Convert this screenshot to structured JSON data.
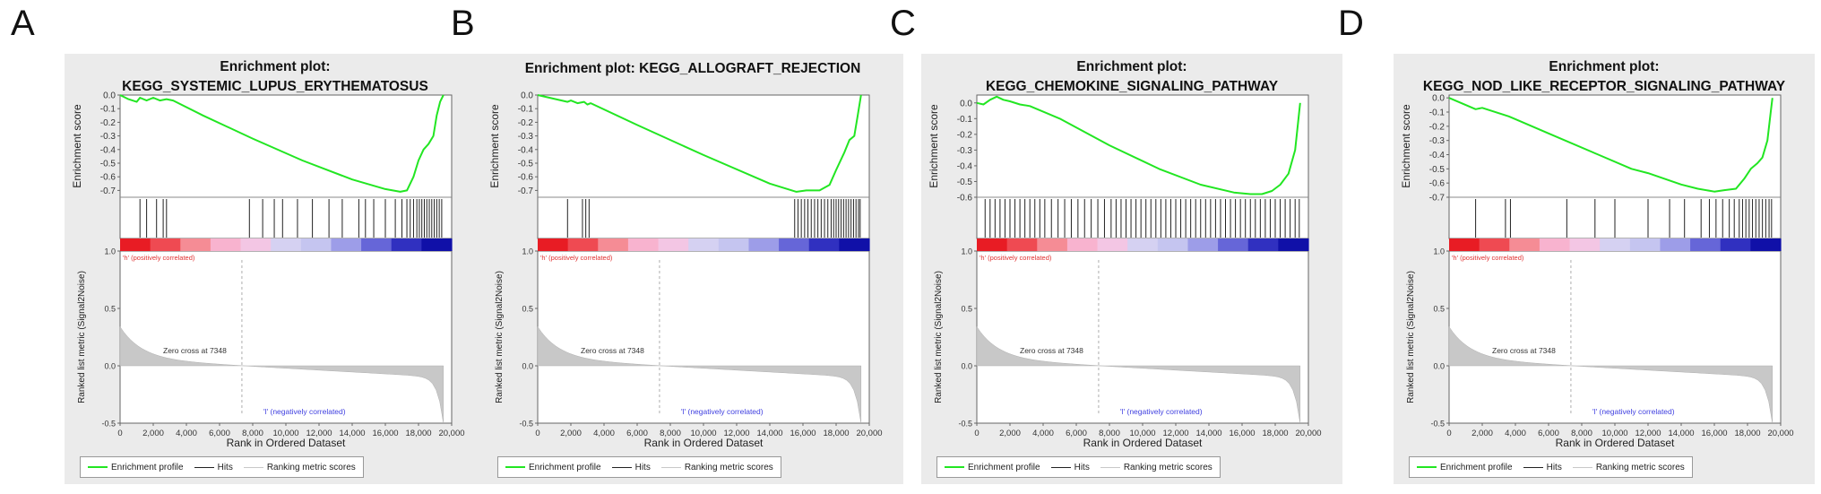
{
  "colors": {
    "profile": "#22e622",
    "hits": "#222222",
    "metric_fill": "#c8c8c8",
    "panel_bg": "#ebebeb",
    "pos_label": "#e03030",
    "neg_label": "#4040e0",
    "ramp": [
      "#e81c24",
      "#ef4a52",
      "#f58c95",
      "#f8b3cf",
      "#f3c6e4",
      "#d5d1f2",
      "#c5c5f0",
      "#9d9de8",
      "#6666d8",
      "#3030c0",
      "#1010a8"
    ]
  },
  "chart_data": [
    {
      "type": "line",
      "letter": "A",
      "title_line1": "Enrichment plot:",
      "title_line2": "KEGG_SYSTEMIC_LUPUS_ERYTHEMATOSUS",
      "ylabel": "Enrichment score",
      "ylabel2": "Ranked list metric (Signal2Noise)",
      "xlabel": "Rank in Ordered Dataset",
      "ylim": [
        -0.75,
        0.0
      ],
      "yticks": [
        "0.0",
        "-0.1",
        "-0.2",
        "-0.3",
        "-0.4",
        "-0.5",
        "-0.6",
        "-0.7"
      ],
      "xlim": [
        0,
        20000
      ],
      "xticks": [
        "0",
        "2,000",
        "4,000",
        "6,000",
        "8,000",
        "10,000",
        "12,000",
        "14,000",
        "16,000",
        "18,000",
        "20,000"
      ],
      "metric_ylim": [
        -0.5,
        1.0
      ],
      "metric_yticks": [
        "1.0",
        "0.5",
        "0.0",
        "-0.5"
      ],
      "pos_label": "'h' (positively correlated)",
      "neg_label": "'l' (negatively correlated)",
      "zero_cross_label": "Zero cross at 7348",
      "zero_cross": 7348,
      "profile": {
        "x": [
          0,
          500,
          1000,
          1200,
          1600,
          2000,
          2400,
          2800,
          3200,
          5000,
          8000,
          11000,
          14000,
          16000,
          16900,
          17300,
          17700,
          18000,
          18300,
          18600,
          18900,
          19100,
          19300,
          19500
        ],
        "y": [
          0.0,
          -0.03,
          -0.05,
          -0.02,
          -0.04,
          -0.02,
          -0.04,
          -0.03,
          -0.04,
          -0.15,
          -0.32,
          -0.48,
          -0.62,
          -0.69,
          -0.71,
          -0.7,
          -0.6,
          -0.48,
          -0.4,
          -0.36,
          -0.3,
          -0.15,
          -0.05,
          0.0
        ]
      },
      "hits": [
        1200,
        1600,
        2200,
        2600,
        2800,
        7800,
        8600,
        9300,
        9800,
        10700,
        11600,
        12600,
        13400,
        14400,
        14800,
        15300,
        16000,
        16600,
        17000,
        17300,
        17500,
        17700,
        17900,
        18050,
        18200,
        18350,
        18500,
        18650,
        18800,
        18950,
        19100,
        19250,
        19400
      ]
    },
    {
      "type": "line",
      "letter": "B",
      "title_line1": "Enrichment plot: KEGG_ALLOGRAFT_REJECTION",
      "title_line2": "",
      "ylabel": "Enrichment score",
      "ylabel2": "Ranked list metric (Signal2Noise)",
      "xlabel": "Rank in Ordered Dataset",
      "ylim": [
        -0.75,
        0.0
      ],
      "yticks": [
        "0.0",
        "-0.1",
        "-0.2",
        "-0.3",
        "-0.4",
        "-0.5",
        "-0.6",
        "-0.7"
      ],
      "xlim": [
        0,
        20000
      ],
      "xticks": [
        "0",
        "2,000",
        "4,000",
        "6,000",
        "8,000",
        "10,000",
        "12,000",
        "14,000",
        "16,000",
        "18,000",
        "20,000"
      ],
      "metric_ylim": [
        -0.5,
        1.0
      ],
      "metric_yticks": [
        "1.0",
        "0.5",
        "0.0",
        "-0.5"
      ],
      "pos_label": "'h' (positively correlated)",
      "neg_label": "'l' (negatively correlated)",
      "zero_cross_label": "Zero cross at 7348",
      "zero_cross": 7348,
      "profile": {
        "x": [
          0,
          1800,
          2000,
          2400,
          2800,
          3000,
          3200,
          6000,
          10000,
          14000,
          15600,
          16200,
          17000,
          17600,
          18000,
          18500,
          18800,
          19100,
          19300,
          19500
        ],
        "y": [
          0.0,
          -0.05,
          -0.04,
          -0.06,
          -0.05,
          -0.07,
          -0.06,
          -0.22,
          -0.44,
          -0.65,
          -0.71,
          -0.7,
          -0.7,
          -0.66,
          -0.55,
          -0.42,
          -0.33,
          -0.3,
          -0.15,
          0.0
        ]
      },
      "hits": [
        1800,
        2700,
        2900,
        3100,
        15500,
        15700,
        15900,
        16100,
        16300,
        16500,
        16700,
        16900,
        17100,
        17300,
        17500,
        17700,
        17850,
        18000,
        18150,
        18300,
        18450,
        18600,
        18750,
        18900,
        19050,
        19200,
        19350,
        19450
      ]
    },
    {
      "type": "line",
      "letter": "C",
      "title_line1": "Enrichment plot:",
      "title_line2": "KEGG_CHEMOKINE_SIGNALING_PATHWAY",
      "ylabel": "Enrichment score",
      "ylabel2": "Ranked list metric (Signal2Noise)",
      "xlabel": "Rank in Ordered Dataset",
      "ylim": [
        -0.6,
        0.05
      ],
      "yticks": [
        "0.0",
        "-0.1",
        "-0.2",
        "-0.3",
        "-0.4",
        "-0.5",
        "-0.6"
      ],
      "xlim": [
        0,
        20000
      ],
      "xticks": [
        "0",
        "2,000",
        "4,000",
        "6,000",
        "8,000",
        "10,000",
        "12,000",
        "14,000",
        "16,000",
        "18,000",
        "20,000"
      ],
      "metric_ylim": [
        -0.5,
        1.0
      ],
      "metric_yticks": [
        "1.0",
        "0.5",
        "0.0",
        "-0.5"
      ],
      "pos_label": "'h' (positively correlated)",
      "neg_label": "'l' (negatively correlated)",
      "zero_cross_label": "Zero cross at 7348",
      "zero_cross": 7348,
      "profile": {
        "x": [
          0,
          400,
          800,
          1200,
          1600,
          2000,
          2600,
          3200,
          5000,
          8000,
          11000,
          13500,
          15500,
          16500,
          17200,
          17800,
          18300,
          18800,
          19200,
          19500
        ],
        "y": [
          0.0,
          -0.01,
          0.02,
          0.04,
          0.02,
          0.01,
          -0.01,
          -0.02,
          -0.1,
          -0.27,
          -0.42,
          -0.52,
          -0.57,
          -0.58,
          -0.58,
          -0.56,
          -0.52,
          -0.45,
          -0.3,
          0.0
        ]
      },
      "hits": [
        500,
        800,
        1100,
        1400,
        1700,
        2000,
        2300,
        2600,
        2900,
        3200,
        3500,
        3800,
        4100,
        4500,
        4900,
        5300,
        5700,
        6100,
        6500,
        6900,
        7300,
        7700,
        8100,
        8400,
        8700,
        9000,
        9300,
        9600,
        9900,
        10200,
        10500,
        10800,
        11100,
        11400,
        11700,
        12000,
        12300,
        12600,
        12900,
        13200,
        13500,
        13800,
        14100,
        14400,
        14700,
        15000,
        15300,
        15600,
        15900,
        16200,
        16500,
        16800,
        17100,
        17400,
        17700,
        18000,
        18300,
        18600,
        18900,
        19200,
        19450
      ]
    },
    {
      "type": "line",
      "letter": "D",
      "title_line1": "Enrichment plot:",
      "title_line2": "KEGG_NOD_LIKE_RECEPTOR_SIGNALING_PATHWAY",
      "ylabel": "Enrichment score",
      "ylabel2": "Ranked list metric (Signal2Noise)",
      "xlabel": "Rank in Ordered Dataset",
      "ylim": [
        -0.7,
        0.02
      ],
      "yticks": [
        "0.0",
        "-0.1",
        "-0.2",
        "-0.3",
        "-0.4",
        "-0.5",
        "-0.6",
        "-0.7"
      ],
      "xlim": [
        0,
        20000
      ],
      "xticks": [
        "0",
        "2,000",
        "4,000",
        "6,000",
        "8,000",
        "10,000",
        "12,000",
        "14,000",
        "16,000",
        "18,000",
        "20,000"
      ],
      "metric_ylim": [
        -0.5,
        1.0
      ],
      "metric_yticks": [
        "1.0",
        "0.5",
        "0.0",
        "-0.5"
      ],
      "pos_label": "'h' (positively correlated)",
      "neg_label": "'l' (negatively correlated)",
      "zero_cross_label": "Zero cross at 7348",
      "zero_cross": 7348,
      "profile": {
        "x": [
          0,
          1000,
          1600,
          2000,
          3600,
          4000,
          6000,
          9000,
          11000,
          12000,
          13000,
          14000,
          15000,
          16000,
          16600,
          17300,
          17800,
          18200,
          18600,
          18900,
          19200,
          19400,
          19500
        ],
        "y": [
          0.0,
          -0.05,
          -0.08,
          -0.07,
          -0.13,
          -0.15,
          -0.25,
          -0.4,
          -0.5,
          -0.53,
          -0.57,
          -0.61,
          -0.64,
          -0.66,
          -0.65,
          -0.64,
          -0.57,
          -0.5,
          -0.46,
          -0.42,
          -0.3,
          -0.1,
          0.0
        ]
      },
      "hits": [
        1600,
        3400,
        3700,
        7100,
        8800,
        10000,
        12000,
        13300,
        14200,
        15200,
        15700,
        16100,
        16500,
        16900,
        17200,
        17500,
        17700,
        17900,
        18100,
        18300,
        18500,
        18700,
        18900,
        19100,
        19300,
        19450
      ]
    }
  ],
  "legend": {
    "profile": "Enrichment profile",
    "hits": "Hits",
    "metric": "Ranking metric scores"
  }
}
